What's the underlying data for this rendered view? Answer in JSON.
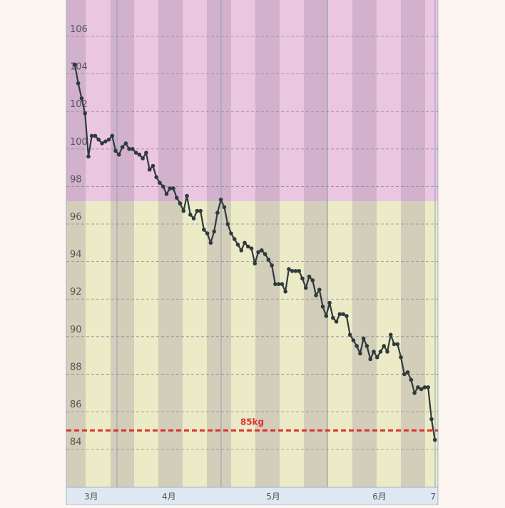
{
  "chart_data": {
    "type": "line",
    "x": [
      0,
      1,
      2,
      3,
      4,
      5,
      6,
      7,
      8,
      9,
      10,
      11,
      12,
      13,
      14,
      15,
      16,
      17,
      18,
      19,
      20,
      21,
      22,
      23,
      24,
      25,
      26,
      27,
      28,
      29,
      30,
      31,
      32,
      33,
      34,
      35,
      36,
      37,
      38,
      39,
      40,
      41,
      42,
      43,
      44,
      45,
      46,
      47,
      48,
      49,
      50,
      51,
      52,
      53,
      54,
      55,
      56,
      57,
      58,
      59,
      60,
      61,
      62,
      63,
      64,
      65,
      66,
      67,
      68,
      69,
      70,
      71,
      72,
      73,
      74,
      75,
      76,
      77,
      78,
      79,
      80,
      81,
      82,
      83,
      84,
      85,
      86,
      87,
      88,
      89,
      90,
      91,
      92,
      93,
      94,
      95,
      96,
      97,
      98,
      99,
      100,
      101,
      102,
      103,
      104,
      105,
      106
    ],
    "series": [
      {
        "color": "#2f3a3d",
        "values": [
          104.5,
          103.5,
          102.7,
          101.9,
          99.6,
          100.7,
          100.7,
          100.5,
          100.3,
          100.4,
          100.5,
          100.7,
          99.9,
          99.7,
          100.1,
          100.3,
          100.0,
          100.0,
          99.8,
          99.7,
          99.5,
          99.8,
          98.9,
          99.1,
          98.5,
          98.2,
          98.0,
          97.6,
          97.9,
          97.9,
          97.4,
          97.1,
          96.7,
          97.5,
          96.5,
          96.3,
          96.7,
          96.7,
          95.7,
          95.5,
          95.0,
          95.6,
          96.6,
          97.3,
          96.9,
          96.0,
          95.5,
          95.2,
          94.9,
          94.6,
          95.0,
          94.8,
          94.7,
          93.9,
          94.5,
          94.6,
          94.4,
          94.1,
          93.8,
          92.8,
          92.8,
          92.8,
          92.4,
          93.6,
          93.5,
          93.5,
          93.5,
          93.1,
          92.6,
          93.2,
          93.0,
          92.2,
          92.5,
          91.6,
          91.1,
          91.8,
          91.0,
          90.8,
          91.2,
          91.2,
          91.1,
          90.1,
          89.8,
          89.5,
          89.1,
          89.9,
          89.5,
          88.8,
          89.2,
          88.9,
          89.2,
          89.5,
          89.2,
          90.1,
          89.6,
          89.6,
          88.9,
          88.0,
          88.1,
          87.7,
          87.0,
          87.3,
          87.2,
          87.3,
          87.3,
          85.6,
          84.5
        ]
      }
    ],
    "xlim": [
      -2.5,
      106.9
    ],
    "xticks": [
      {
        "value": 4.8,
        "label": "3月"
      },
      {
        "value": 27.7,
        "label": "4月"
      },
      {
        "value": 58.4,
        "label": "5月"
      },
      {
        "value": 89.7,
        "label": "6月"
      },
      {
        "value": 105.5,
        "label": "7"
      }
    ],
    "ylim": [
      81.97,
      107.94
    ],
    "yticks": [
      84,
      86,
      88,
      90,
      92,
      94,
      96,
      98,
      100,
      102,
      104,
      106
    ],
    "grid": true,
    "annotations": [
      {
        "text": "85kg",
        "y": 85,
        "color": "#e03030"
      }
    ]
  }
}
